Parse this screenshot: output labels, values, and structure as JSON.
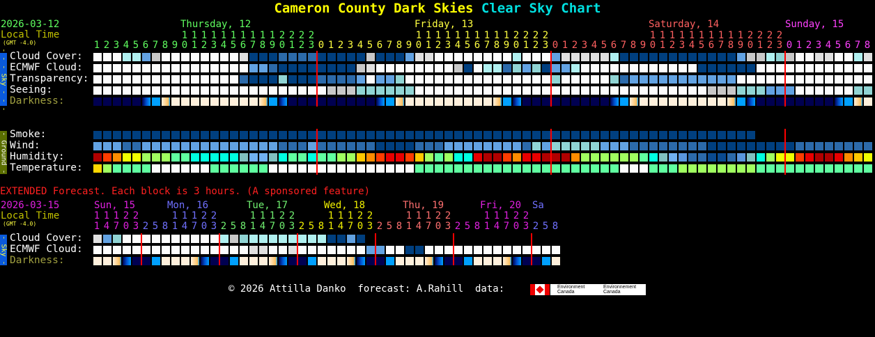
{
  "title": {
    "site": "Cameron County Dark Skies",
    "chart": "Clear Sky Chart"
  },
  "main": {
    "date": "2026-03-12",
    "local_time": "Local Time",
    "gmt": "(GMT -4.0)",
    "days": [
      {
        "label": "Thursday, 12",
        "color": "#60ff60",
        "hours": [
          1,
          2,
          3,
          4,
          5,
          6,
          7,
          8,
          9,
          10,
          11,
          12,
          13,
          14,
          15,
          16,
          17,
          18,
          19,
          20,
          21,
          22,
          23
        ]
      },
      {
        "label": "Friday, 13",
        "color": "#ffff40",
        "hours": [
          0,
          1,
          2,
          3,
          4,
          5,
          6,
          7,
          8,
          9,
          10,
          11,
          12,
          13,
          14,
          15,
          16,
          17,
          18,
          19,
          20,
          21,
          22,
          23
        ]
      },
      {
        "label": "Saturday, 14",
        "color": "#ff6060",
        "hours": [
          0,
          1,
          2,
          3,
          4,
          5,
          6,
          7,
          8,
          9,
          10,
          11,
          12,
          13,
          14,
          15,
          16,
          17,
          18,
          19,
          20,
          21,
          22,
          23
        ]
      },
      {
        "label": "Sunday, 15",
        "color": "#ff40ff",
        "hours": [
          0,
          1,
          2,
          3,
          4,
          5,
          6,
          7,
          8
        ]
      }
    ],
    "sky_group_label": "- - - Sky - - -",
    "ground_group_label": "- Ground -",
    "sky_rows": [
      {
        "label": "Cloud Cover:",
        "cells": "WWWccLgWWWWWWWWGDDDMMMMDDDDDgDDDLGGWWWWWWWWcWWWLGGGGGcDDDDDDDDDDDDLggctgWWGGWWcG"
      },
      {
        "label": "ECMWF Cloud:",
        "cells": "WWWWWWWWWWWWWWWWLLMDDDDDDDDgGWWWWWWWWgDWccMtLtDLLcWWWWWWWWWWWWDDDDDDWWWWWWWWWWWW"
      },
      {
        "label": "Transparency:",
        "cells": "WWWWWWWWWWWWWWWMDDDtDDDMMMMLWLLtWWWWWWWWWWWWWWWtWWWWWtMLLLLLLLLLLLWWWWWWWWWWWWWW"
      },
      {
        "label": "Seeing:",
        "cells": "WWWWWWWWWWWWWWWWWWWWWWWWgggttttttWWWWWWWWWWWWWWWWWWWWWWWWWWWWWWgggtttLLLWWWWWWtt"
      },
      {
        "label": "Darkness:",
        "cells": "NNNNNTBOYYYYYYYYYOBTNNNNNNNNNTBOYYYYYYYYYOBTNNNNNNNNNTBOYYYYYYYYYOBTNNNNNNNNTBOY",
        "kind": "darkness"
      }
    ],
    "ground_rows": [
      {
        "label": "Smoke:",
        "cells": "DDDDDDDDDDDDDDDDDDDDDDDDDDDDDDDDDDDDDDDDDDDDDDDDDDDDDDDDDDDDDDDDDDDD"
      },
      {
        "label": "Wind:",
        "cells": "LLLMMLLLLLLLLLLLLLLMMMLMMMMMMDDDDMMMLLLLLLLLMtLtttttLLLMMMMMMMMDDDDDDDDDMMMMMMMM"
      },
      {
        "label": "Humidity:",
        "cells": "roOyylllggccccctbbtcggcggllaOoRRoalglccRrroORRrrrOllllllgctbLMMDDMLtclyyoRrrROay",
        "kind": "humidity"
      },
      {
        "label": "Temperature:",
        "cells": "YlggggWWWWWWggggggWWWWWWWWWWWWWWWgggggggggggggggggggggWWWgggllllllllgggggggggggg",
        "kind": "temperature"
      }
    ]
  },
  "extended": {
    "heading": "EXTENDED Forecast. Each block is 3 hours. (A sponsored feature)",
    "date": "2026-03-15",
    "local_time": "Local Time",
    "gmt": "(GMT -4.0)",
    "days": [
      {
        "label": "Sun, 15",
        "color": "#e020e0",
        "hours": [
          11,
          14,
          17,
          20,
          23,
          2,
          5,
          8
        ]
      },
      {
        "label": "Mon, 16",
        "color": "#7070ff",
        "hours": [
          11,
          14,
          17,
          20,
          23,
          2,
          5,
          8
        ]
      },
      {
        "label": "Tue, 17",
        "color": "#70f070",
        "hours": [
          11,
          14,
          17,
          20,
          23,
          2,
          5,
          8
        ]
      },
      {
        "label": "Wed, 18",
        "color": "#f0f000",
        "hours": [
          11,
          14,
          17,
          20,
          23,
          2,
          5,
          8
        ]
      },
      {
        "label": "Thu, 19",
        "color": "#ff7070",
        "hours": [
          11,
          14,
          17,
          20,
          23,
          2,
          5,
          8
        ]
      },
      {
        "label": "Fri, 20",
        "color": "#e020e0",
        "hours": [
          11,
          14,
          17,
          20,
          23,
          2,
          5,
          8
        ]
      },
      {
        "label": "Sa",
        "color": "#7070ff",
        "hours": []
      }
    ],
    "sky_group_label": "- Sky -",
    "rows": [
      {
        "label": "Cloud Cover:",
        "cells": "GLtWWWWWWWWWWcgtccccccccDDLD"
      },
      {
        "label": "ECMWF Cloud:",
        "cells": "WWWWWWWWWWWWWWWWGGWWGWWWWWWWLLWWDDWWWWWWWWWWWWWW"
      },
      {
        "label": "Darkness:",
        "cells": "YYOTNNBYYYOTNNBYYYOTNNBYYYOTNNBYYYOTNNBYYYOTNNBY",
        "kind": "darkness"
      }
    ]
  },
  "footer": {
    "text": "© 2026 Attilla Danko  forecast: A.Rahill  data:",
    "logo_en": "Environment Canada",
    "logo_fr": "Environnement Canada"
  },
  "palettes": {
    "sky": {
      "W": "#fcfcfc",
      "G": "#e0e0e0",
      "g": "#c8c8c8",
      "c": "#b0f0f0",
      "t": "#90d4d4",
      "L": "#62a2e2",
      "M": "#2c6aaa",
      "D": "#003f7f"
    },
    "darkness": {
      "N": "#000050",
      "T": "#0050d0",
      "B": "#00a0ff",
      "O": "#ffc060",
      "Y": "#fff0dc"
    },
    "humidity": {
      "r": "#b00000",
      "R": "#e80000",
      "o": "#ff3c00",
      "O": "#ff8c00",
      "a": "#ffc800",
      "y": "#f0ff00",
      "l": "#a0ff60",
      "g": "#60ffa0",
      "c": "#00ffe0",
      "t": "#80c0c0",
      "b": "#70b0f0",
      "L": "#5a96dc",
      "M": "#2c6aaa",
      "D": "#0a4a90"
    },
    "temperature": {
      "Y": "#ffd700",
      "l": "#a0ff60",
      "g": "#60ffa0",
      "W": "#fcfcfc"
    }
  },
  "colors": {
    "title": "#ffff00",
    "chart_name": "#00e0e0",
    "date": "#60ff60",
    "local_time": "#c0c000",
    "darkness_label": "#a0a040",
    "extended_heading": "#ff2020",
    "sky_bar": "#0a5adc",
    "ground_bar": "#5a6e00",
    "day_line": "#ff0000"
  }
}
